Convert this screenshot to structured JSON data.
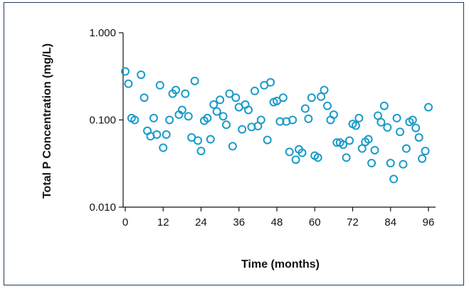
{
  "chart_data": {
    "type": "scatter",
    "xlabel": "Time (months)",
    "ylabel": "Total P Concentration (mg/L)",
    "xlim": [
      0,
      102
    ],
    "ylim": [
      0.01,
      1.0
    ],
    "yscale": "log",
    "x_ticks": [
      0,
      12,
      24,
      36,
      48,
      60,
      72,
      84,
      96
    ],
    "x_tick_labels": [
      "0",
      "12",
      "24",
      "36",
      "48",
      "60",
      "72",
      "84",
      "96"
    ],
    "y_ticks": [
      0.01,
      0.1,
      1.0
    ],
    "y_tick_labels": [
      "0.010",
      "0.100",
      "1.000"
    ],
    "grid": false,
    "marker": "open-circle",
    "marker_color": "#1a9bc9",
    "x": [
      0,
      1,
      2,
      3,
      5,
      6,
      7,
      8,
      9,
      10,
      11,
      12,
      13,
      14,
      15,
      16,
      17,
      18,
      19,
      20,
      21,
      22,
      23,
      24,
      25,
      26,
      27,
      28,
      29,
      30,
      31,
      32,
      33,
      34,
      35,
      36,
      37,
      38,
      39,
      40,
      41,
      42,
      43,
      44,
      45,
      46,
      47,
      48,
      49,
      50,
      51,
      52,
      53,
      54,
      55,
      56,
      57,
      58,
      59,
      60,
      61,
      62,
      63,
      64,
      65,
      66,
      67,
      68,
      69,
      70,
      71,
      72,
      73,
      74,
      75,
      76,
      77,
      78,
      79,
      80,
      81,
      82,
      83,
      84,
      85,
      86,
      87,
      88,
      89,
      90,
      91,
      92,
      93,
      94,
      95,
      96
    ],
    "y": [
      0.36,
      0.26,
      0.105,
      0.1,
      0.33,
      0.18,
      0.075,
      0.065,
      0.105,
      0.068,
      0.25,
      0.048,
      0.068,
      0.1,
      0.2,
      0.22,
      0.115,
      0.13,
      0.2,
      0.11,
      0.063,
      0.28,
      0.058,
      0.044,
      0.098,
      0.105,
      0.06,
      0.15,
      0.125,
      0.17,
      0.11,
      0.088,
      0.2,
      0.05,
      0.18,
      0.14,
      0.078,
      0.15,
      0.13,
      0.083,
      0.215,
      0.085,
      0.1,
      0.25,
      0.059,
      0.27,
      0.16,
      0.165,
      0.096,
      0.18,
      0.096,
      0.043,
      0.1,
      0.035,
      0.046,
      0.042,
      0.135,
      0.103,
      0.18,
      0.039,
      0.037,
      0.185,
      0.22,
      0.145,
      0.1,
      0.115,
      0.055,
      0.055,
      0.052,
      0.037,
      0.058,
      0.09,
      0.086,
      0.105,
      0.047,
      0.056,
      0.06,
      0.032,
      0.045,
      0.112,
      0.094,
      0.145,
      0.082,
      0.032,
      0.021,
      0.105,
      0.073,
      0.031,
      0.047,
      0.095,
      0.1,
      0.081,
      0.063,
      0.036,
      0.044,
      0.14
    ]
  }
}
